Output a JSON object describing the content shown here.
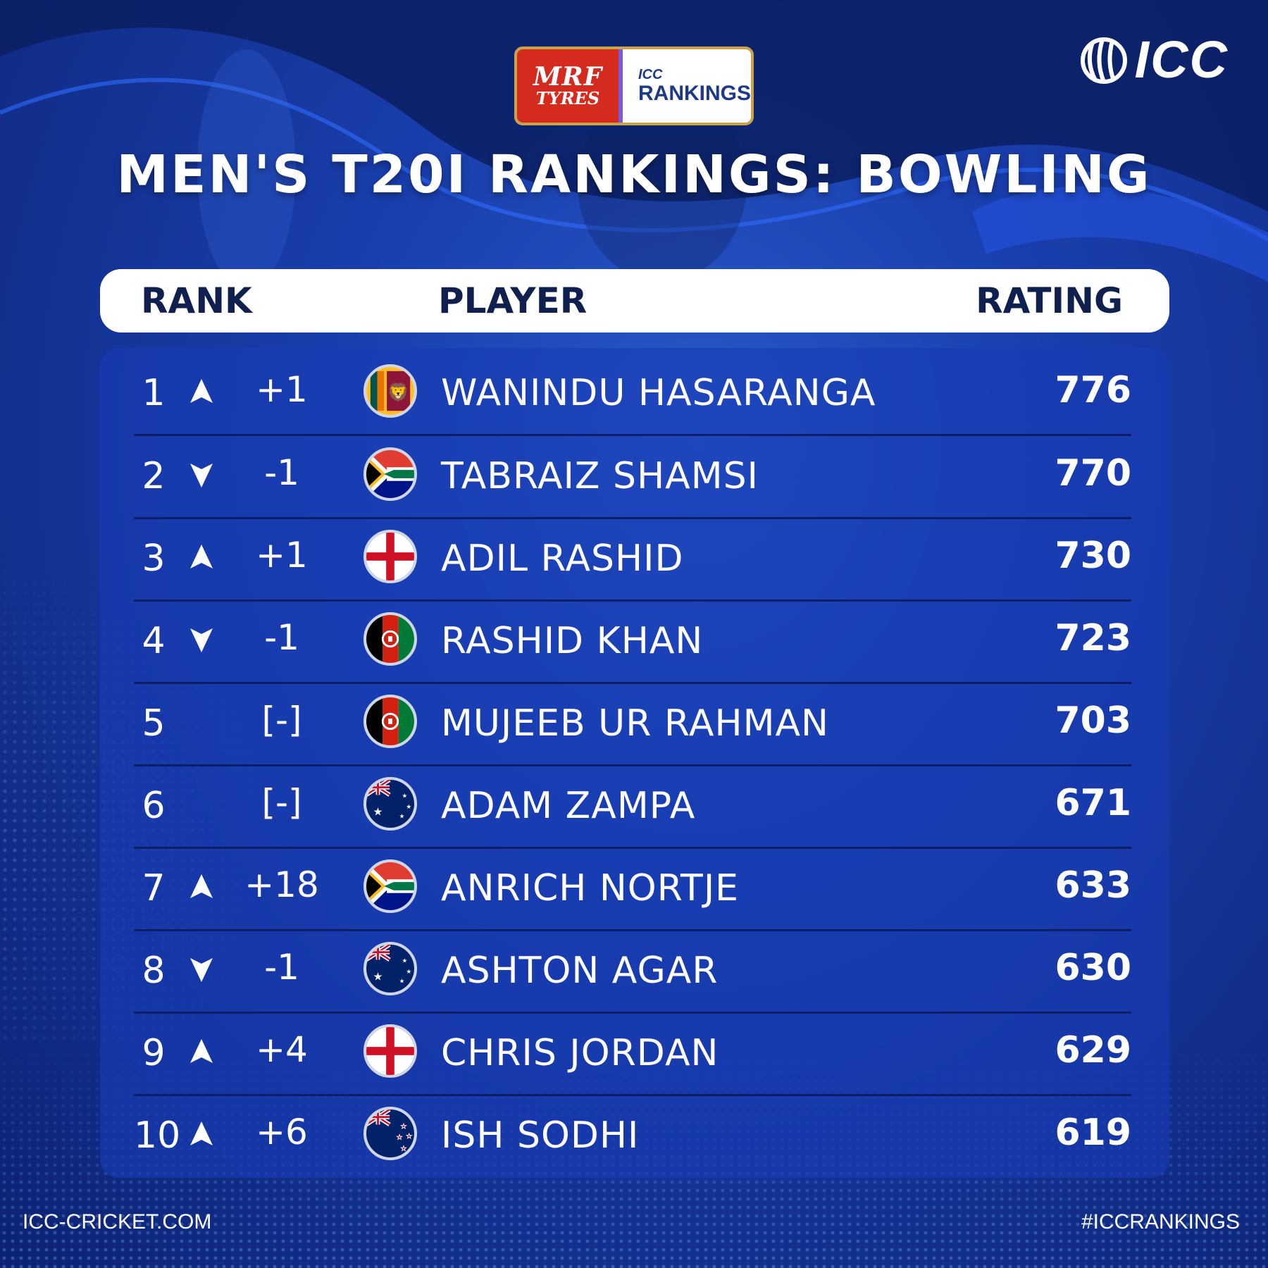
{
  "sponsor": {
    "brand_main": "MRF",
    "brand_sub": "TYRES",
    "icc_label": "ICC",
    "rankings_label": "RANKINGS"
  },
  "icc_logo_text": "ICC",
  "title": "MEN'S T20I RANKINGS: BOWLING",
  "header": {
    "rank": "RANK",
    "player": "PLAYER",
    "rating": "RATING"
  },
  "rows": [
    {
      "rank": "1",
      "trend": "up",
      "change": "+1",
      "flag": "sri-lanka",
      "player": "WANINDU HASARANGA",
      "rating": "776"
    },
    {
      "rank": "2",
      "trend": "down",
      "change": "-1",
      "flag": "south-africa",
      "player": "TABRAIZ SHAMSI",
      "rating": "770"
    },
    {
      "rank": "3",
      "trend": "up",
      "change": "+1",
      "flag": "england",
      "player": "ADIL RASHID",
      "rating": "730"
    },
    {
      "rank": "4",
      "trend": "down",
      "change": "-1",
      "flag": "afghanistan",
      "player": "RASHID KHAN",
      "rating": "723"
    },
    {
      "rank": "5",
      "trend": "none",
      "change": "[-]",
      "flag": "afghanistan",
      "player": "MUJEEB UR RAHMAN",
      "rating": "703"
    },
    {
      "rank": "6",
      "trend": "none",
      "change": "[-]",
      "flag": "australia",
      "player": "ADAM ZAMPA",
      "rating": "671"
    },
    {
      "rank": "7",
      "trend": "up",
      "change": "+18",
      "flag": "south-africa",
      "player": "ANRICH NORTJE",
      "rating": "633"
    },
    {
      "rank": "8",
      "trend": "down",
      "change": "-1",
      "flag": "australia",
      "player": "ASHTON AGAR",
      "rating": "630"
    },
    {
      "rank": "9",
      "trend": "up",
      "change": "+4",
      "flag": "england",
      "player": "CHRIS JORDAN",
      "rating": "629"
    },
    {
      "rank": "10",
      "trend": "up",
      "change": "+6",
      "flag": "new-zealand",
      "player": "ISH SODHI",
      "rating": "619"
    }
  ],
  "footer": {
    "website": "ICC-CRICKET.COM",
    "hashtag": "#ICCRANKINGS"
  },
  "colors": {
    "background": "#1a3fae",
    "table": "#183cb4",
    "header_text": "#0f1f4e",
    "sponsor_red": "#d52b1e"
  }
}
